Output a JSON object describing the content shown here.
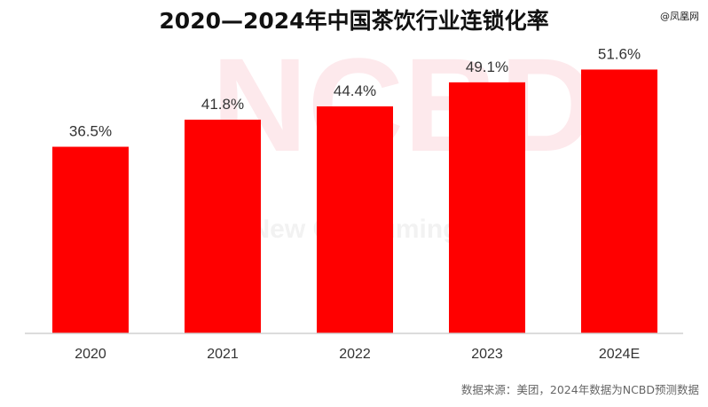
{
  "corner_watermark": "@凤凰网",
  "watermark": {
    "large": "NCBD",
    "small": "New Consuming B"
  },
  "source_note": "数据来源：美团，2024年数据为NCBD预测数据",
  "colors": {
    "bar": "#ff0000",
    "axis": "#d0d0d0",
    "text": "#333333"
  },
  "chart_data": {
    "type": "bar",
    "title": "2020—2024年中国茶饮行业连锁化率",
    "xlabel": "",
    "ylabel": "",
    "categories": [
      "2020",
      "2021",
      "2022",
      "2023",
      "2024E"
    ],
    "values": [
      36.5,
      41.8,
      44.4,
      49.1,
      51.6
    ],
    "data_labels": [
      "36.5%",
      "41.8%",
      "44.4%",
      "49.1%",
      "51.6%"
    ],
    "unit": "%",
    "ylim": [
      0,
      60
    ],
    "grid": false,
    "legend": "none"
  }
}
